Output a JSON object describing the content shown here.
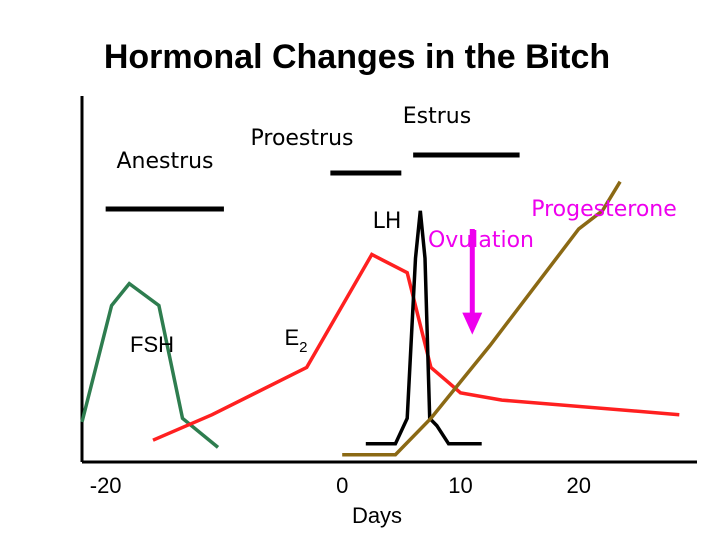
{
  "chart_data": {
    "type": "line",
    "title": "Hormonal Changes in the Bitch",
    "xlabel": "Days",
    "ylabel": "",
    "xlim": [
      -22,
      30
    ],
    "ylim": [
      0,
      100
    ],
    "x_ticks": [
      {
        "value": -20,
        "label": "-20"
      },
      {
        "value": 0,
        "label": "0"
      },
      {
        "value": 10,
        "label": "10"
      },
      {
        "value": 20,
        "label": "20"
      }
    ],
    "phases": [
      {
        "name": "Anestrus",
        "start": -20,
        "end": -10
      },
      {
        "name": "Proestrus",
        "start": -1,
        "end": 5
      },
      {
        "name": "Estrus",
        "start": 6,
        "end": 15
      }
    ],
    "series": [
      {
        "name": "FSH",
        "color": "#2e7d4f",
        "x": [
          -22,
          -19.5,
          -18,
          -15.5,
          -13.5,
          -10.5
        ],
        "y": [
          11,
          43,
          49,
          43,
          12,
          4
        ]
      },
      {
        "name": "E2",
        "display_name": "E",
        "subscript": "2",
        "color": "#ff2020",
        "x": [
          -16,
          -11,
          -3,
          2.5,
          5.5,
          7.5,
          10,
          13.5,
          28.5
        ],
        "y": [
          6,
          13,
          26,
          57,
          52,
          26,
          19,
          17,
          13
        ]
      },
      {
        "name": "LH",
        "color": "#000000",
        "x": [
          2,
          4.5,
          5.5,
          6.2,
          6.6,
          7,
          7.4,
          8,
          9,
          11.8
        ],
        "y": [
          5,
          5,
          12,
          56,
          69,
          56,
          12,
          10,
          5,
          5
        ]
      },
      {
        "name": "Progesterone",
        "color": "#8b6914",
        "x": [
          0,
          4.5,
          7.5,
          12.5,
          20,
          22,
          23.5
        ],
        "y": [
          2,
          2,
          12,
          32,
          64,
          69,
          77
        ]
      }
    ],
    "annotations": [
      {
        "text": "Ovulation",
        "color": "#ee00ee",
        "arrow_x": 11,
        "arrow_y_from": 64,
        "arrow_y_to": 35
      }
    ],
    "grid": false,
    "legend": "none"
  }
}
